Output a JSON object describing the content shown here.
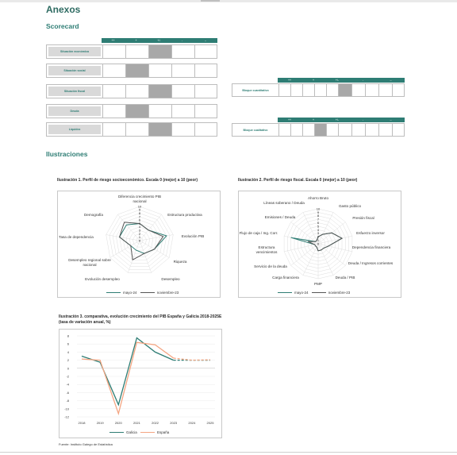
{
  "title": "Anexos",
  "scorecard_heading": "Scorecard",
  "illustrations_heading": "Ilustraciones",
  "scorecard": {
    "headers": [
      "++",
      "+",
      "+/-",
      "-",
      "--"
    ],
    "rows": [
      {
        "label": "Situación económica",
        "selected": 2
      },
      {
        "label": "Situación social",
        "selected": 1
      },
      {
        "label": "Situación fiscal",
        "selected": 2
      },
      {
        "label": "Deuda",
        "selected": 1
      },
      {
        "label": "Liquidez",
        "selected": 2
      }
    ],
    "blocks": [
      {
        "label": "Bloque cuantitativo",
        "selected": 2
      },
      {
        "label": "Bloque cualitativo",
        "selected": 1
      }
    ]
  },
  "colors": {
    "accent": "#2e7d74",
    "series_may": "#2e7d74",
    "series_nov": "#555555",
    "espana": "#f4a582",
    "galicia": "#2e7d74",
    "selected_cell": "#a8a8a8"
  },
  "ill1": {
    "caption": "Ilustración 1. Perfil de riesgo socioeconómico. Escala 0 (mejor) a 10 (peor)",
    "axes": [
      "Diferencia crecimiento PIB nacional",
      "Estructura productiva",
      "Evolución PIB",
      "Riqueza",
      "Desempleo",
      "Evolución desempleo",
      "Desempleo regional sobre nacional",
      "Tasa de dependencia",
      "Demografía"
    ],
    "scale_ticks": [
      "10",
      "9",
      "8",
      "7",
      "6",
      "5",
      "4",
      "3",
      "2",
      "1",
      "0"
    ],
    "legend": [
      "mayo-24",
      "noviembre-23"
    ]
  },
  "ill2": {
    "caption": "Ilustración 2. Perfil de riesgo fiscal. Escala 0 (mejor) a 10 (peor)",
    "axes": [
      "Ahorro Bruto",
      "Gasto público",
      "Presión fiscal",
      "Esfuerzo inversor",
      "Dependencia financiera",
      "Deuda / Ingresos corrientes",
      "Deuda / PIB",
      "PMP",
      "Carga financiera",
      "Servicio de la deuda",
      "Estructura vencimientos",
      "Flujo de caja / Ing. Corr.",
      "Emisiones / Deuda",
      "Líneas soberano / Deuda"
    ],
    "scale_ticks": [
      "10",
      "9",
      "8",
      "7",
      "6",
      "5",
      "4",
      "3",
      "2",
      "1",
      "0"
    ],
    "legend": [
      "mayo-24",
      "noviembre-23"
    ]
  },
  "ill3": {
    "caption": "Ilustración 3. comparativa, evolución crecimiento del PIB España y Galicia 2018-2025E (tasa de variación anual, %)",
    "legend": [
      "Galicia",
      "España"
    ]
  },
  "source": "Fuente: Instituto Galego de Estatística",
  "chart_data": [
    {
      "type": "radar",
      "title": "Ilustración 1. Perfil de riesgo socioeconómico. Escala 0 (mejor) a 10 (peor)",
      "categories": [
        "Diferencia crecimiento PIB nacional",
        "Estructura productiva",
        "Evolución PIB",
        "Riqueza",
        "Desempleo",
        "Evolución desempleo",
        "Desempleo regional sobre nacional",
        "Tasa de dependencia",
        "Demografía"
      ],
      "range": [
        0,
        10
      ],
      "series": [
        {
          "name": "mayo-24",
          "values": [
            5,
            4,
            8,
            5,
            4,
            3,
            3,
            6,
            6
          ]
        },
        {
          "name": "noviembre-23",
          "values": [
            5,
            4,
            7,
            5,
            4,
            6,
            3,
            6,
            7
          ]
        }
      ]
    },
    {
      "type": "radar",
      "title": "Ilustración 2. Perfil de riesgo fiscal. Escala 0 (mejor) a 10 (peor)",
      "categories": [
        "Ahorro Bruto",
        "Gasto público",
        "Presión fiscal",
        "Esfuerzo inversor",
        "Dependencia financiera",
        "Deuda / Ingresos corrientes",
        "Deuda / PIB",
        "PMP",
        "Carga financiera",
        "Servicio de la deuda",
        "Estructura vencimientos",
        "Flujo de caja / Ing. Corr.",
        "Emisiones / Deuda",
        "Líneas soberano / Deuda"
      ],
      "range": [
        0,
        10
      ],
      "series": [
        {
          "name": "mayo-24",
          "values": [
            2,
            3,
            5,
            7,
            3,
            2,
            2,
            2,
            1,
            1,
            1,
            8,
            1,
            1
          ]
        },
        {
          "name": "noviembre-23",
          "values": [
            2,
            3,
            5,
            7,
            3,
            2,
            2,
            2,
            1,
            1,
            1,
            3,
            1,
            1
          ]
        }
      ]
    },
    {
      "type": "line",
      "title": "Ilustración 3. comparativa, evolución crecimiento del PIB España y Galicia 2018-2025E (tasa de variación anual, %)",
      "x": [
        "2018",
        "2019",
        "2020",
        "2021",
        "2022",
        "2023",
        "2024",
        "2025"
      ],
      "ylim": [
        -12,
        8
      ],
      "yticks": [
        8,
        6,
        4,
        2,
        0,
        -2,
        -4,
        -6,
        -8,
        -10,
        -12
      ],
      "dashed_from": "2023",
      "series": [
        {
          "name": "Galicia",
          "values": [
            3.0,
            1.5,
            -9.0,
            7.5,
            4.0,
            2.0,
            2.0,
            2.0
          ]
        },
        {
          "name": "España",
          "values": [
            2.3,
            2.0,
            -11.2,
            6.4,
            5.8,
            2.5,
            2.0,
            2.1
          ]
        }
      ]
    }
  ]
}
